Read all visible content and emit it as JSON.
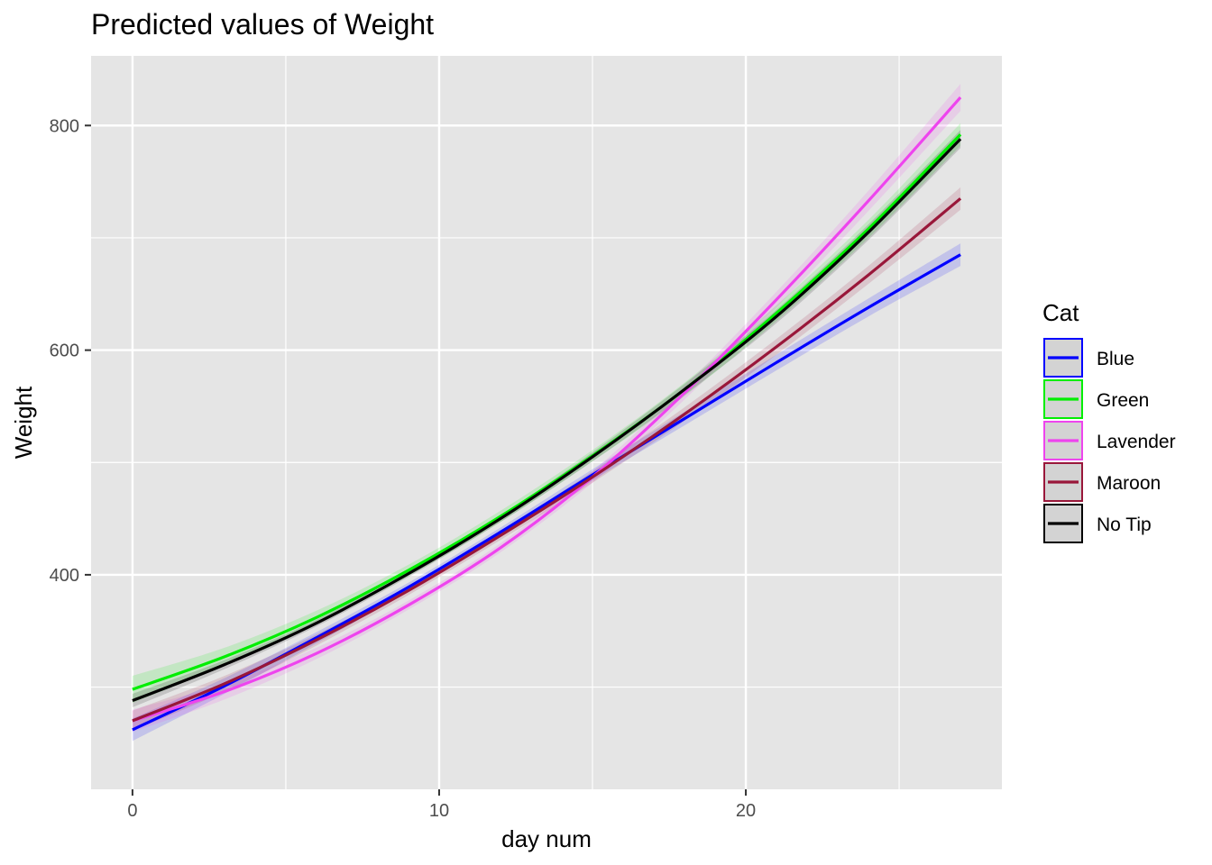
{
  "chart_data": {
    "type": "line",
    "title": "Predicted values of Weight",
    "xlabel": "day num",
    "ylabel": "Weight",
    "xlim": [
      -1.35,
      28.35
    ],
    "ylim": [
      209,
      862
    ],
    "x_ticks": [
      0,
      10,
      20
    ],
    "x_tick_labels": [
      "0",
      "10",
      "20"
    ],
    "x_minor": [
      5,
      15,
      25
    ],
    "y_ticks": [
      400,
      600,
      800
    ],
    "y_tick_labels": [
      "400",
      "600",
      "800"
    ],
    "y_minor": [
      300,
      500,
      700
    ],
    "grid": true,
    "legend": {
      "title": "Cat",
      "placement": "right"
    },
    "x": [
      0,
      3,
      6,
      9,
      12,
      15,
      18,
      21,
      24,
      27
    ],
    "series": [
      {
        "name": "Blue",
        "color": "#0000ff",
        "values": [
          262,
          301,
          344,
          389,
          438,
          489,
          539,
          589,
          638,
          685
        ],
        "band": [
          10,
          7,
          5,
          4,
          4,
          5,
          6,
          7,
          8,
          10
        ]
      },
      {
        "name": "Green",
        "color": "#00ee00",
        "values": [
          298,
          327,
          362,
          404,
          452,
          506,
          565,
          633,
          708,
          792
        ],
        "band": [
          12,
          8,
          6,
          5,
          5,
          5,
          6,
          7,
          8,
          10
        ]
      },
      {
        "name": "Lavender",
        "color": "#ee44ee",
        "values": [
          270,
          296,
          330,
          373,
          424,
          487,
          562,
          645,
          733,
          825
        ],
        "band": [
          10,
          7,
          5,
          4,
          4,
          5,
          6,
          7,
          9,
          12
        ]
      },
      {
        "name": "Maroon",
        "color": "#99173a",
        "values": [
          270,
          303,
          342,
          386,
          435,
          487,
          543,
          603,
          667,
          735
        ],
        "band": [
          9,
          7,
          5,
          4,
          4,
          5,
          6,
          7,
          8,
          10
        ]
      },
      {
        "name": "No Tip",
        "color": "#000000",
        "values": [
          288,
          320,
          357,
          401,
          450,
          505,
          565,
          630,
          705,
          788
        ],
        "band": [
          6,
          4,
          3,
          3,
          3,
          4,
          5,
          6,
          7,
          8
        ]
      }
    ]
  }
}
